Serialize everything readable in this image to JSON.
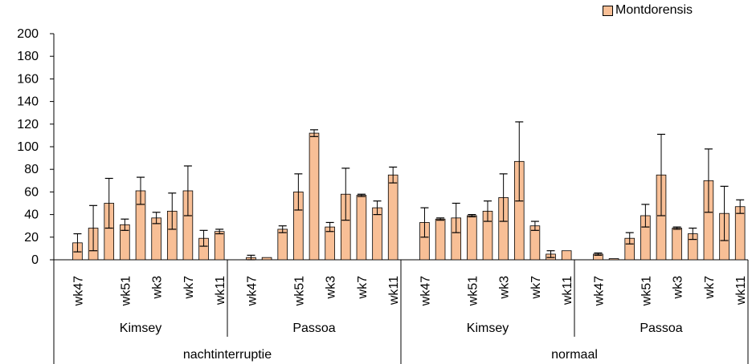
{
  "colors": {
    "bar": "#F8BF96",
    "bar_stroke": "#000000",
    "axis": "#000000"
  },
  "chart_data": {
    "type": "bar",
    "title": "",
    "xlabel": "",
    "ylabel": "",
    "ylim": [
      0,
      200
    ],
    "yticks": [
      0,
      20,
      40,
      60,
      80,
      100,
      120,
      140,
      160,
      180,
      200
    ],
    "grid": false,
    "legend_position": "top-right",
    "series": [
      {
        "name": "Montdorensis",
        "groups": [
          {
            "label": "nachtinterruptie",
            "subgroups": [
              {
                "label": "Kimsey",
                "bars": [
                  {
                    "week": "wk47",
                    "value": 15,
                    "error": 8
                  },
                  {
                    "week": "",
                    "value": 28,
                    "error": 20
                  },
                  {
                    "week": "",
                    "value": 50,
                    "error": 22
                  },
                  {
                    "week": "wk51",
                    "value": 31,
                    "error": 5
                  },
                  {
                    "week": "",
                    "value": 61,
                    "error": 12
                  },
                  {
                    "week": "wk3",
                    "value": 37,
                    "error": 5
                  },
                  {
                    "week": "",
                    "value": 43,
                    "error": 16
                  },
                  {
                    "week": "wk7",
                    "value": 61,
                    "error": 22
                  },
                  {
                    "week": "",
                    "value": 19,
                    "error": 7
                  },
                  {
                    "week": "wk11",
                    "value": 25,
                    "error": 2
                  }
                ]
              },
              {
                "label": "Passoa",
                "bars": [
                  {
                    "week": "wk47",
                    "value": 2,
                    "error": 2
                  },
                  {
                    "week": "",
                    "value": 2,
                    "error": 0
                  },
                  {
                    "week": "",
                    "value": 27,
                    "error": 3
                  },
                  {
                    "week": "wk51",
                    "value": 60,
                    "error": 16
                  },
                  {
                    "week": "",
                    "value": 112,
                    "error": 3
                  },
                  {
                    "week": "wk3",
                    "value": 29,
                    "error": 4
                  },
                  {
                    "week": "",
                    "value": 58,
                    "error": 23
                  },
                  {
                    "week": "wk7",
                    "value": 57,
                    "error": 1
                  },
                  {
                    "week": "",
                    "value": 46,
                    "error": 6
                  },
                  {
                    "week": "wk11",
                    "value": 75,
                    "error": 7
                  }
                ]
              }
            ]
          },
          {
            "label": "normaal",
            "subgroups": [
              {
                "label": "Kimsey",
                "bars": [
                  {
                    "week": "wk47",
                    "value": 33,
                    "error": 13
                  },
                  {
                    "week": "",
                    "value": 36,
                    "error": 1
                  },
                  {
                    "week": "",
                    "value": 37,
                    "error": 13
                  },
                  {
                    "week": "wk51",
                    "value": 39,
                    "error": 1
                  },
                  {
                    "week": "",
                    "value": 43,
                    "error": 9
                  },
                  {
                    "week": "wk3",
                    "value": 55,
                    "error": 21
                  },
                  {
                    "week": "",
                    "value": 87,
                    "error": 35
                  },
                  {
                    "week": "wk7",
                    "value": 30,
                    "error": 4
                  },
                  {
                    "week": "",
                    "value": 5,
                    "error": 3
                  },
                  {
                    "week": "wk11",
                    "value": 8,
                    "error": 0
                  }
                ]
              },
              {
                "label": "Passoa",
                "bars": [
                  {
                    "week": "wk47",
                    "value": 5,
                    "error": 1
                  },
                  {
                    "week": "",
                    "value": 1,
                    "error": 0
                  },
                  {
                    "week": "",
                    "value": 19,
                    "error": 5
                  },
                  {
                    "week": "wk51",
                    "value": 39,
                    "error": 10
                  },
                  {
                    "week": "",
                    "value": 75,
                    "error": 36
                  },
                  {
                    "week": "wk3",
                    "value": 28,
                    "error": 1
                  },
                  {
                    "week": "",
                    "value": 23,
                    "error": 5
                  },
                  {
                    "week": "wk7",
                    "value": 70,
                    "error": 28
                  },
                  {
                    "week": "",
                    "value": 41,
                    "error": 24
                  },
                  {
                    "week": "wk11",
                    "value": 47,
                    "error": 6
                  }
                ]
              }
            ]
          }
        ]
      }
    ]
  }
}
